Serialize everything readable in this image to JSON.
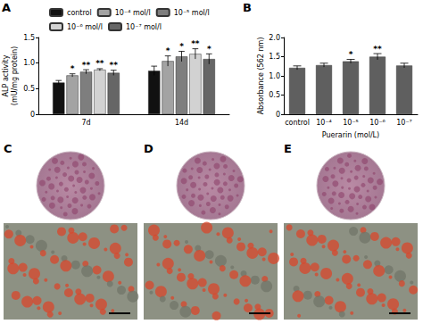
{
  "chart_data": [
    {
      "type": "bar",
      "title": "A",
      "categories": [
        "7d",
        "14d"
      ],
      "ylabel": "ALP activity\n(mU/mg protein)",
      "series": [
        {
          "name": "control",
          "color": "#111111",
          "values": [
            0.62,
            0.85
          ],
          "errors": [
            0.04,
            0.09
          ],
          "significance": [
            null,
            null
          ]
        },
        {
          "name": "10⁻⁴ mol/l",
          "color": "#a3a3a3",
          "values": [
            0.76,
            1.04
          ],
          "errors": [
            0.03,
            0.1
          ],
          "significance": [
            "*",
            "*"
          ]
        },
        {
          "name": "10⁻⁵ mol/l",
          "color": "#7e7e7e",
          "values": [
            0.83,
            1.13
          ],
          "errors": [
            0.04,
            0.1
          ],
          "significance": [
            "**",
            "*"
          ]
        },
        {
          "name": "10⁻⁶ mol/l",
          "color": "#d2d2d2",
          "values": [
            0.87,
            1.18
          ],
          "errors": [
            0.02,
            0.1
          ],
          "significance": [
            "**",
            "**"
          ]
        },
        {
          "name": "10⁻⁷ mol/l",
          "color": "#666666",
          "values": [
            0.81,
            1.08
          ],
          "errors": [
            0.05,
            0.1
          ],
          "significance": [
            "**",
            "*"
          ]
        }
      ],
      "ylim": [
        0,
        1.5
      ],
      "yticks": [
        0,
        0.5,
        {
          "value": 1,
          "label": "1.0"
        },
        1.5
      ],
      "legend": "top",
      "grid": false
    },
    {
      "type": "bar",
      "title": "B",
      "categories": [
        "control",
        "10⁻⁴",
        "10⁻⁵",
        "10⁻⁶",
        "10⁻⁷"
      ],
      "xlabel": "Puerarin (mol/L)",
      "ylabel": "Absorbance (562 nm)",
      "values": [
        1.21,
        1.28,
        1.38,
        1.5,
        1.27
      ],
      "errors": [
        0.05,
        0.05,
        0.05,
        0.08,
        0.06
      ],
      "significance": [
        null,
        null,
        "*",
        "**",
        null
      ],
      "color": "#5f5f5f",
      "ylim": [
        0,
        2
      ],
      "yticks": [
        0,
        0.5,
        {
          "value": 1,
          "label": "1.0"
        },
        1.5,
        {
          "value": 2,
          "label": "2.0"
        }
      ],
      "grid": false
    }
  ],
  "images": [
    {
      "title": "C"
    },
    {
      "title": "D"
    },
    {
      "title": "E"
    }
  ]
}
